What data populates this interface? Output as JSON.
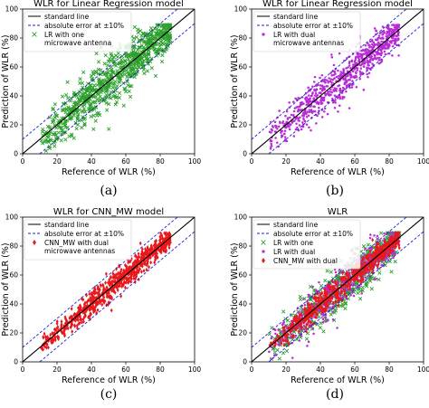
{
  "panels": [
    {
      "caption": "(a)",
      "chart_data": {
        "type": "scatter",
        "title": "WLR for Linear Regression model",
        "xlabel": "Reference of WLR (%)",
        "ylabel": "Prediction of WLR (%)",
        "xlim": [
          0,
          100
        ],
        "ylim": [
          0,
          100
        ],
        "xticks": [
          "0",
          "20",
          "40",
          "60",
          "80",
          "100"
        ],
        "yticks": [
          "0",
          "20",
          "40",
          "60",
          "80",
          "100"
        ],
        "grid": false,
        "legend_position": "upper-left",
        "lines": [
          {
            "name": "standard line",
            "style": "solid",
            "color": "#000000",
            "offset": 0
          },
          {
            "name": "absolute error at ±10%",
            "style": "dashed",
            "color": "#1f1fd0",
            "offset": 10
          },
          {
            "name": "",
            "style": "dashed",
            "color": "#1f1fd0",
            "offset": -10
          }
        ],
        "series": [
          {
            "name": "LR with one\nmicrowave antenna",
            "marker": "x",
            "color": "#2ca02c",
            "x_range": [
              10,
              86
            ],
            "spread_sd": 7,
            "count": 800
          }
        ]
      }
    },
    {
      "caption": "(b)",
      "chart_data": {
        "type": "scatter",
        "title": "WLR for Linear Regression model",
        "xlabel": "Reference of WLR (%)",
        "ylabel": "Prediction of WLR (%)",
        "xlim": [
          0,
          100
        ],
        "ylim": [
          0,
          100
        ],
        "xticks": [
          "0",
          "20",
          "40",
          "60",
          "80",
          "100"
        ],
        "yticks": [
          "0",
          "20",
          "40",
          "60",
          "80",
          "100"
        ],
        "grid": false,
        "legend_position": "upper-left",
        "lines": [
          {
            "name": "standard line",
            "style": "solid",
            "color": "#000000",
            "offset": 0
          },
          {
            "name": "absolute error at ±10%",
            "style": "dashed",
            "color": "#1f1fd0",
            "offset": 10
          },
          {
            "name": "",
            "style": "dashed",
            "color": "#1f1fd0",
            "offset": -10
          }
        ],
        "series": [
          {
            "name": "LR with dual\nmicrowave antennas",
            "marker": "dot",
            "color": "#b82bd6",
            "x_range": [
              10,
              86
            ],
            "spread_sd": 6,
            "count": 800
          }
        ]
      }
    },
    {
      "caption": "(c)",
      "chart_data": {
        "type": "scatter",
        "title": "WLR for CNN_MW model",
        "xlabel": "Reference of WLR (%)",
        "ylabel": "Prediction of WLR (%)",
        "xlim": [
          0,
          100
        ],
        "ylim": [
          0,
          100
        ],
        "xticks": [
          "0",
          "20",
          "40",
          "60",
          "80",
          "100"
        ],
        "yticks": [
          "0",
          "20",
          "40",
          "60",
          "80",
          "100"
        ],
        "grid": false,
        "legend_position": "upper-left",
        "lines": [
          {
            "name": "standard line",
            "style": "solid",
            "color": "#000000",
            "offset": 0
          },
          {
            "name": "absolute error at ±10%",
            "style": "dashed",
            "color": "#1f1fd0",
            "offset": 10
          },
          {
            "name": "",
            "style": "dashed",
            "color": "#1f1fd0",
            "offset": -10
          }
        ],
        "series": [
          {
            "name": "CNN_MW with dual\nmicrowave antennas",
            "marker": "diamond",
            "color": "#e8191c",
            "x_range": [
              10,
              86
            ],
            "spread_sd": 3.5,
            "count": 800
          }
        ]
      }
    },
    {
      "caption": "(d)",
      "chart_data": {
        "type": "scatter",
        "title": "WLR",
        "xlabel": "Reference of WLR (%)",
        "ylabel": "Prediction of WLR (%)",
        "xlim": [
          0,
          100
        ],
        "ylim": [
          0,
          100
        ],
        "xticks": [
          "0",
          "20",
          "40",
          "60",
          "80",
          "100"
        ],
        "yticks": [
          "0",
          "20",
          "40",
          "60",
          "80",
          "100"
        ],
        "grid": false,
        "legend_position": "upper-left",
        "lines": [
          {
            "name": "standard line",
            "style": "solid",
            "color": "#000000",
            "offset": 0
          },
          {
            "name": "absolute error at ±10%",
            "style": "dashed",
            "color": "#1f1fd0",
            "offset": 10
          },
          {
            "name": "",
            "style": "dashed",
            "color": "#1f1fd0",
            "offset": -10
          }
        ],
        "series": [
          {
            "name": "LR with one",
            "marker": "x",
            "color": "#2ca02c",
            "x_range": [
              10,
              86
            ],
            "spread_sd": 7,
            "count": 600
          },
          {
            "name": "LR with dual",
            "marker": "dot",
            "color": "#b82bd6",
            "x_range": [
              10,
              86
            ],
            "spread_sd": 6,
            "count": 600
          },
          {
            "name": "CNN_MW with dual",
            "marker": "diamond",
            "color": "#e8191c",
            "x_range": [
              10,
              86
            ],
            "spread_sd": 3.5,
            "count": 600
          }
        ]
      }
    }
  ]
}
